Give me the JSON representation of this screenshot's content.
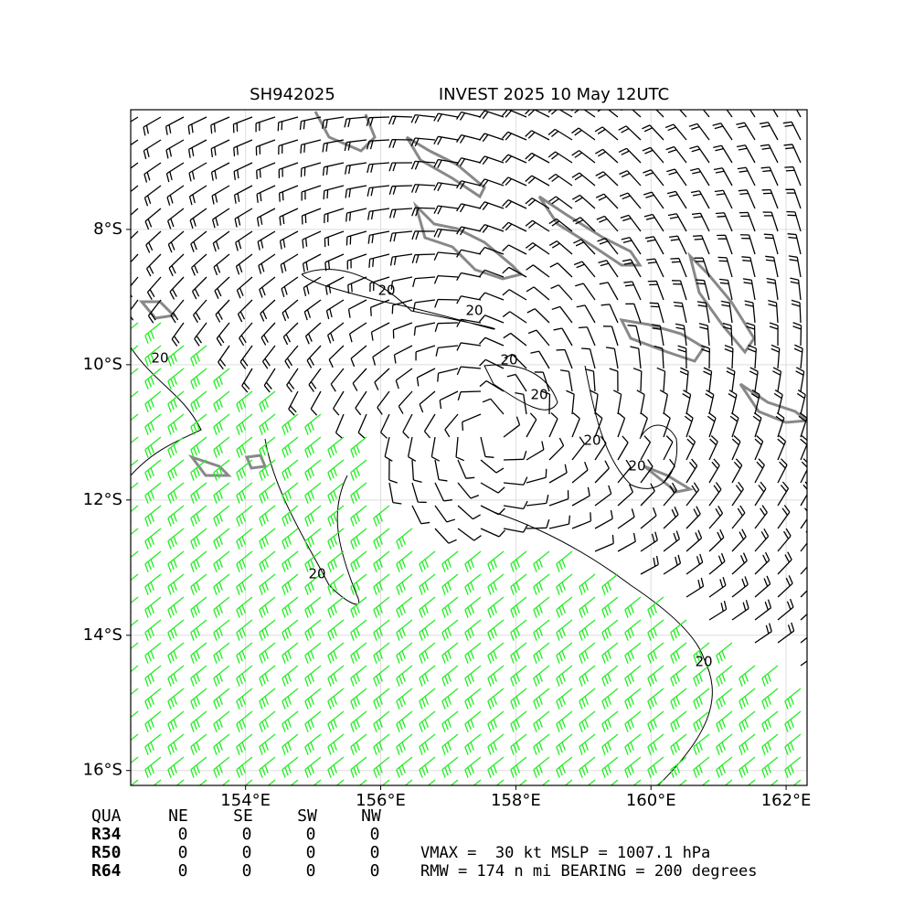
{
  "chart_data": {
    "type": "map",
    "title": "SH942025",
    "subtitle": "INVEST 2025 10 May 12UTC",
    "xlim": [
      152.3,
      162.31
    ],
    "ylim": [
      -16.22,
      -6.23
    ],
    "xticks": [
      {
        "value": 154,
        "label": "154°E"
      },
      {
        "value": 156,
        "label": "156°E"
      },
      {
        "value": 158,
        "label": "158°E"
      },
      {
        "value": 160,
        "label": "160°E"
      },
      {
        "value": 162,
        "label": "162°E"
      }
    ],
    "yticks": [
      {
        "value": -8,
        "label": "8°S"
      },
      {
        "value": -10,
        "label": "10°S"
      },
      {
        "value": -12,
        "label": "12°S"
      },
      {
        "value": -14,
        "label": "14°S"
      },
      {
        "value": -16,
        "label": "16°S"
      }
    ],
    "grid": true,
    "contour_labels": [
      "20",
      "20",
      "20",
      "20",
      "20",
      "20",
      "20",
      "20",
      "20"
    ]
  },
  "table": {
    "header": [
      "QUA",
      "NE",
      "SE",
      "SW",
      "NW"
    ],
    "rows": [
      [
        "R34",
        0,
        0,
        0,
        0
      ],
      [
        "R50",
        0,
        0,
        0,
        0
      ],
      [
        "R64",
        0,
        0,
        0,
        0
      ]
    ]
  },
  "info": [
    "VMAX =  30 kt MSLP = 1007.1 hPa",
    "RMW = 174 n mi BEARING = 200 degrees"
  ]
}
